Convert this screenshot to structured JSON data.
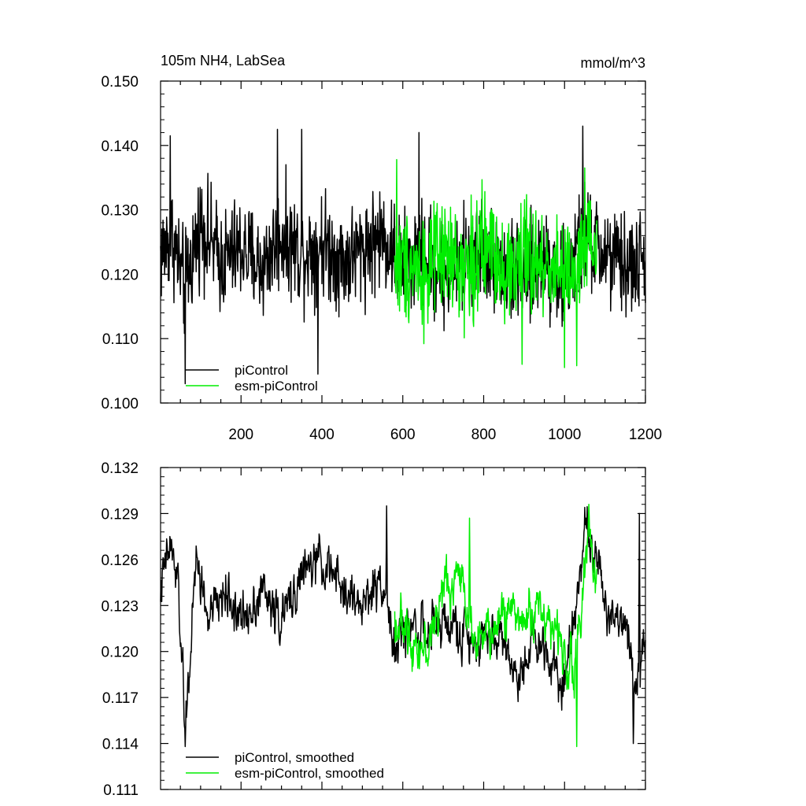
{
  "chart_data": [
    {
      "type": "line",
      "title": "105m NH4, LabSea",
      "units": "mmol/m^3",
      "xlim": [
        1,
        1200
      ],
      "ylim": [
        0.1,
        0.15
      ],
      "xticks": [
        200,
        400,
        600,
        800,
        1000,
        1200
      ],
      "xtick_labels": [
        "200",
        "400",
        "600",
        "800",
        "1000",
        "1200"
      ],
      "yticks": [
        0.1,
        0.11,
        0.12,
        0.13,
        0.14,
        0.15
      ],
      "ytick_labels": [
        "0.100",
        "0.110",
        "0.120",
        "0.130",
        "0.140",
        "0.150"
      ],
      "grid": false,
      "legend_position": "bottom-left",
      "series": [
        {
          "name": "piControl",
          "color": "#000000",
          "x_range": [
            1,
            1200
          ],
          "anchors_x": [
            1,
            30,
            60,
            100,
            150,
            200,
            250,
            300,
            350,
            400,
            450,
            500,
            550,
            600,
            650,
            700,
            750,
            800,
            850,
            900,
            950,
            1000,
            1050,
            1100,
            1150,
            1200
          ],
          "anchors_y": [
            0.123,
            0.126,
            0.118,
            0.128,
            0.122,
            0.124,
            0.121,
            0.126,
            0.123,
            0.125,
            0.122,
            0.124,
            0.126,
            0.121,
            0.123,
            0.12,
            0.122,
            0.124,
            0.121,
            0.119,
            0.123,
            0.118,
            0.126,
            0.123,
            0.121,
            0.122
          ],
          "noise_amplitude": 0.006,
          "spikes": [
            [
              25,
              0.1415
            ],
            [
              62,
              0.103
            ],
            [
              290,
              0.1425
            ],
            [
              350,
              0.1425
            ],
            [
              390,
              0.1045
            ],
            [
              640,
              0.142
            ],
            [
              1045,
              0.143
            ]
          ]
        },
        {
          "name": "esm-piControl",
          "color": "#00ee00",
          "x_range": [
            580,
            1080
          ],
          "anchors_x": [
            580,
            620,
            660,
            700,
            740,
            780,
            820,
            860,
            900,
            940,
            980,
            1020,
            1060,
            1080
          ],
          "anchors_y": [
            0.121,
            0.122,
            0.12,
            0.123,
            0.121,
            0.122,
            0.125,
            0.12,
            0.123,
            0.121,
            0.122,
            0.119,
            0.124,
            0.123
          ],
          "noise_amplitude": 0.0065,
          "spikes": [
            [
              585,
              0.1378
            ],
            [
              895,
              0.106
            ],
            [
              1000,
              0.1055
            ],
            [
              1030,
              0.1058
            ],
            [
              1050,
              0.1365
            ]
          ]
        }
      ]
    },
    {
      "type": "line",
      "title": "",
      "xlim": [
        1,
        1200
      ],
      "ylim": [
        0.111,
        0.132
      ],
      "xticks": [
        200,
        400,
        600,
        800,
        1000,
        1200
      ],
      "yticks": [
        0.111,
        0.114,
        0.117,
        0.12,
        0.123,
        0.126,
        0.129,
        0.132
      ],
      "ytick_labels": [
        "0.111",
        "0.114",
        "0.117",
        "0.120",
        "0.123",
        "0.126",
        "0.129",
        "0.132"
      ],
      "grid": false,
      "legend_position": "bottom-left",
      "series": [
        {
          "name": "piControl, smoothed",
          "color": "#000000",
          "x_range": [
            1,
            1200
          ],
          "anchors_x": [
            1,
            25,
            45,
            62,
            90,
            120,
            160,
            200,
            250,
            300,
            350,
            400,
            450,
            500,
            550,
            580,
            620,
            660,
            700,
            750,
            800,
            850,
            880,
            920,
            960,
            1000,
            1040,
            1060,
            1100,
            1150,
            1180,
            1200
          ],
          "anchors_y": [
            0.124,
            0.127,
            0.124,
            0.115,
            0.126,
            0.122,
            0.124,
            0.122,
            0.124,
            0.122,
            0.125,
            0.126,
            0.124,
            0.123,
            0.125,
            0.12,
            0.122,
            0.121,
            0.122,
            0.121,
            0.121,
            0.121,
            0.118,
            0.121,
            0.12,
            0.118,
            0.126,
            0.128,
            0.123,
            0.122,
            0.118,
            0.121
          ],
          "noise_amplitude": 0.0022,
          "spikes": [
            [
              62,
              0.1138
            ],
            [
              560,
              0.1295
            ],
            [
              1050,
              0.1294
            ],
            [
              1170,
              0.114
            ],
            [
              1185,
              0.129
            ]
          ]
        },
        {
          "name": "esm-piControl, smoothed",
          "color": "#00ee00",
          "x_range": [
            580,
            1080
          ],
          "anchors_x": [
            580,
            620,
            660,
            700,
            740,
            780,
            820,
            860,
            900,
            940,
            980,
            1020,
            1040,
            1060,
            1080
          ],
          "anchors_y": [
            0.122,
            0.121,
            0.12,
            0.124,
            0.125,
            0.121,
            0.121,
            0.123,
            0.122,
            0.123,
            0.121,
            0.119,
            0.122,
            0.128,
            0.125
          ],
          "noise_amplitude": 0.0022,
          "spikes": [
            [
              765,
              0.1287
            ],
            [
              1030,
              0.1138
            ],
            [
              1060,
              0.1296
            ]
          ]
        }
      ]
    }
  ]
}
